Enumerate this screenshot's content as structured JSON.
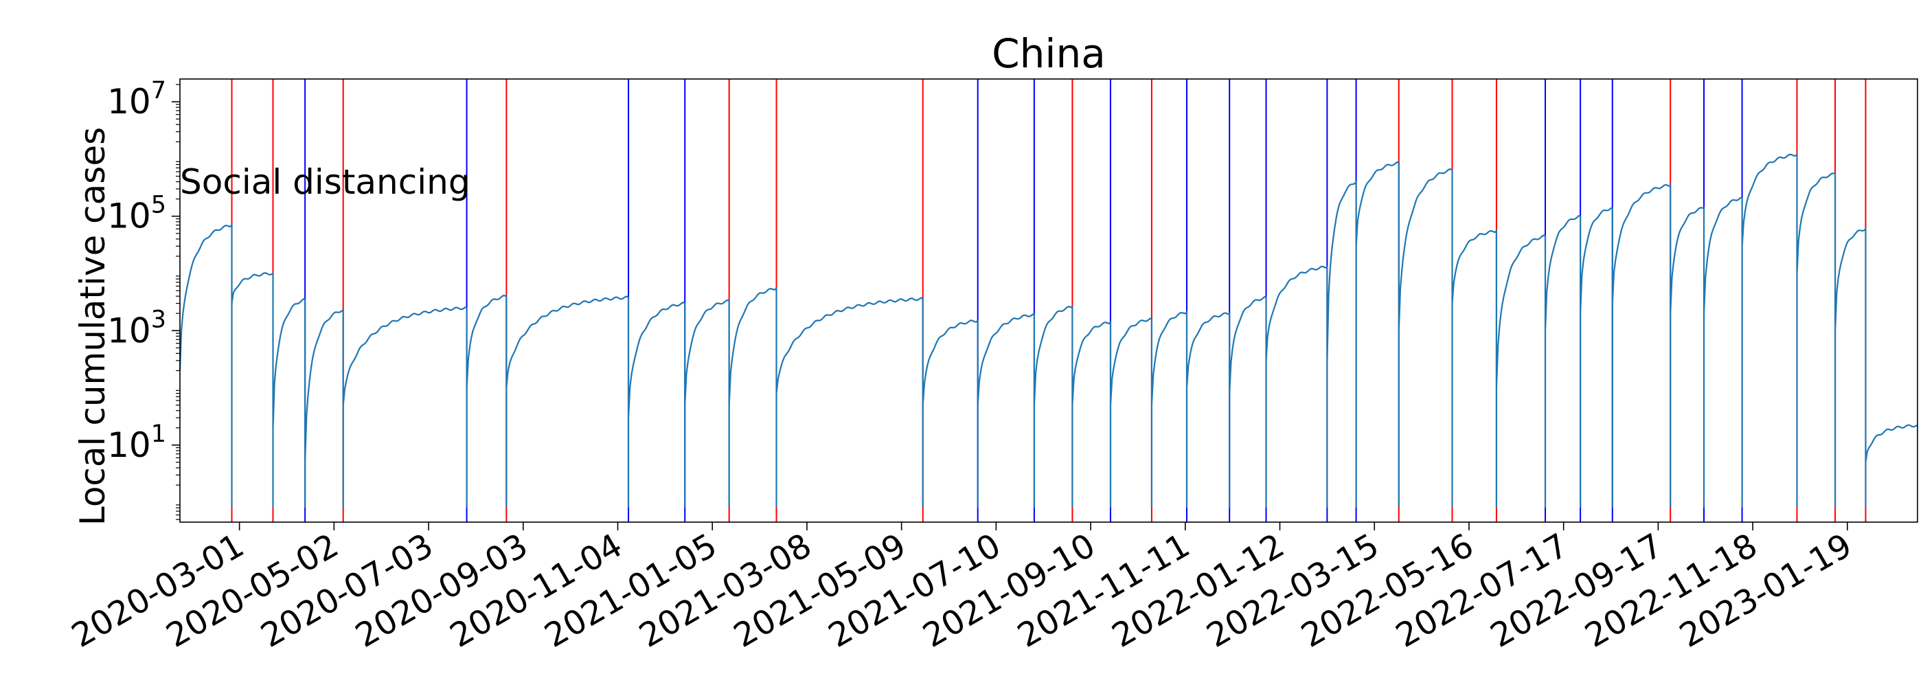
{
  "chart_data": {
    "type": "line",
    "title": "China",
    "ylabel": "Local cumulative cases",
    "xlabel": "",
    "yscale": "log",
    "ylim": [
      0.45,
      25000000
    ],
    "xlim": [
      "2020-01-22",
      "2023-03-06"
    ],
    "x_tick_labels": [
      "2020-03-01",
      "2020-05-02",
      "2020-07-03",
      "2020-09-03",
      "2020-11-04",
      "2021-01-05",
      "2021-03-08",
      "2021-05-09",
      "2021-07-10",
      "2021-09-10",
      "2021-11-11",
      "2022-01-12",
      "2022-03-15",
      "2022-05-16",
      "2022-07-17",
      "2022-09-17",
      "2022-11-18",
      "2023-01-19"
    ],
    "y_ticks": [
      {
        "value": 10,
        "base": "10",
        "exp": "1"
      },
      {
        "value": 1000,
        "base": "10",
        "exp": "3"
      },
      {
        "value": 100000,
        "base": "10",
        "exp": "5"
      },
      {
        "value": 10000000,
        "base": "10",
        "exp": "7"
      }
    ],
    "annotation": {
      "text": "Social distancing"
    },
    "grid": false,
    "colors": {
      "series": "#1f77b4",
      "relax": "#ff0000",
      "tighten": "#0000ff"
    },
    "event_lines": [
      {
        "date": "2020-02-25",
        "kind": "relax"
      },
      {
        "date": "2020-03-23",
        "kind": "relax"
      },
      {
        "date": "2020-04-13",
        "kind": "tighten"
      },
      {
        "date": "2020-05-08",
        "kind": "relax"
      },
      {
        "date": "2020-07-28",
        "kind": "tighten"
      },
      {
        "date": "2020-08-23",
        "kind": "relax"
      },
      {
        "date": "2020-11-11",
        "kind": "tighten"
      },
      {
        "date": "2020-12-18",
        "kind": "tighten"
      },
      {
        "date": "2021-01-16",
        "kind": "relax"
      },
      {
        "date": "2021-02-16",
        "kind": "relax"
      },
      {
        "date": "2021-05-23",
        "kind": "relax"
      },
      {
        "date": "2021-06-28",
        "kind": "tighten"
      },
      {
        "date": "2021-08-04",
        "kind": "tighten"
      },
      {
        "date": "2021-08-29",
        "kind": "relax"
      },
      {
        "date": "2021-09-23",
        "kind": "tighten"
      },
      {
        "date": "2021-10-20",
        "kind": "relax"
      },
      {
        "date": "2021-11-12",
        "kind": "tighten"
      },
      {
        "date": "2021-12-10",
        "kind": "tighten"
      },
      {
        "date": "2022-01-03",
        "kind": "tighten"
      },
      {
        "date": "2022-02-12",
        "kind": "tighten"
      },
      {
        "date": "2022-03-03",
        "kind": "tighten"
      },
      {
        "date": "2022-03-31",
        "kind": "relax"
      },
      {
        "date": "2022-05-05",
        "kind": "relax"
      },
      {
        "date": "2022-06-03",
        "kind": "relax"
      },
      {
        "date": "2022-07-05",
        "kind": "tighten"
      },
      {
        "date": "2022-07-28",
        "kind": "tighten"
      },
      {
        "date": "2022-08-18",
        "kind": "tighten"
      },
      {
        "date": "2022-09-25",
        "kind": "relax"
      },
      {
        "date": "2022-10-17",
        "kind": "tighten"
      },
      {
        "date": "2022-11-11",
        "kind": "tighten"
      },
      {
        "date": "2022-12-17",
        "kind": "relax"
      },
      {
        "date": "2023-01-11",
        "kind": "relax"
      },
      {
        "date": "2023-01-31",
        "kind": "relax"
      }
    ],
    "series": [
      {
        "segments": [
          {
            "start": "2020-01-22",
            "end": "2020-02-25",
            "v0": 200,
            "v1": 70000
          },
          {
            "start": "2020-02-25",
            "end": "2020-03-23",
            "v0": 3000,
            "v1": 10000
          },
          {
            "start": "2020-03-23",
            "end": "2020-04-13",
            "v0": 20,
            "v1": 3500
          },
          {
            "start": "2020-04-13",
            "end": "2020-05-08",
            "v0": 5,
            "v1": 2300
          },
          {
            "start": "2020-05-08",
            "end": "2020-07-28",
            "v0": 50,
            "v1": 2500
          },
          {
            "start": "2020-07-28",
            "end": "2020-08-23",
            "v0": 100,
            "v1": 4000
          },
          {
            "start": "2020-08-23",
            "end": "2020-11-11",
            "v0": 100,
            "v1": 3800
          },
          {
            "start": "2020-11-11",
            "end": "2020-12-18",
            "v0": 30,
            "v1": 3000
          },
          {
            "start": "2020-12-18",
            "end": "2021-01-16",
            "v0": 50,
            "v1": 3300
          },
          {
            "start": "2021-01-16",
            "end": "2021-02-16",
            "v0": 50,
            "v1": 5500
          },
          {
            "start": "2021-02-16",
            "end": "2021-05-23",
            "v0": 80,
            "v1": 3600
          },
          {
            "start": "2021-05-23",
            "end": "2021-06-28",
            "v0": 50,
            "v1": 1500
          },
          {
            "start": "2021-06-28",
            "end": "2021-08-04",
            "v0": 50,
            "v1": 1900
          },
          {
            "start": "2021-08-04",
            "end": "2021-08-29",
            "v0": 50,
            "v1": 2600
          },
          {
            "start": "2021-08-29",
            "end": "2021-09-23",
            "v0": 50,
            "v1": 1400
          },
          {
            "start": "2021-09-23",
            "end": "2021-10-20",
            "v0": 50,
            "v1": 1600
          },
          {
            "start": "2021-10-20",
            "end": "2021-11-12",
            "v0": 50,
            "v1": 2100
          },
          {
            "start": "2021-11-12",
            "end": "2021-12-10",
            "v0": 100,
            "v1": 2000
          },
          {
            "start": "2021-12-10",
            "end": "2022-01-03",
            "v0": 80,
            "v1": 3800
          },
          {
            "start": "2022-01-03",
            "end": "2022-02-12",
            "v0": 300,
            "v1": 13000
          },
          {
            "start": "2022-02-12",
            "end": "2022-03-03",
            "v0": 300,
            "v1": 400000
          },
          {
            "start": "2022-03-03",
            "end": "2022-03-31",
            "v0": 30000,
            "v1": 850000
          },
          {
            "start": "2022-03-31",
            "end": "2022-05-05",
            "v0": 1000,
            "v1": 650000
          },
          {
            "start": "2022-05-05",
            "end": "2022-06-03",
            "v0": 3000,
            "v1": 55000
          },
          {
            "start": "2022-06-03",
            "end": "2022-07-05",
            "v0": 100,
            "v1": 45000
          },
          {
            "start": "2022-07-05",
            "end": "2022-07-28",
            "v0": 1000,
            "v1": 100000
          },
          {
            "start": "2022-07-28",
            "end": "2022-08-18",
            "v0": 2000,
            "v1": 140000
          },
          {
            "start": "2022-08-18",
            "end": "2022-09-25",
            "v0": 3000,
            "v1": 350000
          },
          {
            "start": "2022-09-25",
            "end": "2022-10-17",
            "v0": 2000,
            "v1": 140000
          },
          {
            "start": "2022-10-17",
            "end": "2022-11-11",
            "v0": 2000,
            "v1": 210000
          },
          {
            "start": "2022-11-11",
            "end": "2022-12-17",
            "v0": 30000,
            "v1": 1200000
          },
          {
            "start": "2022-12-17",
            "end": "2023-01-11",
            "v0": 10000,
            "v1": 550000
          },
          {
            "start": "2023-01-11",
            "end": "2023-01-31",
            "v0": 1000,
            "v1": 60000
          },
          {
            "start": "2023-01-31",
            "end": "2023-03-06",
            "v0": 5,
            "v1": 22
          }
        ]
      }
    ]
  }
}
